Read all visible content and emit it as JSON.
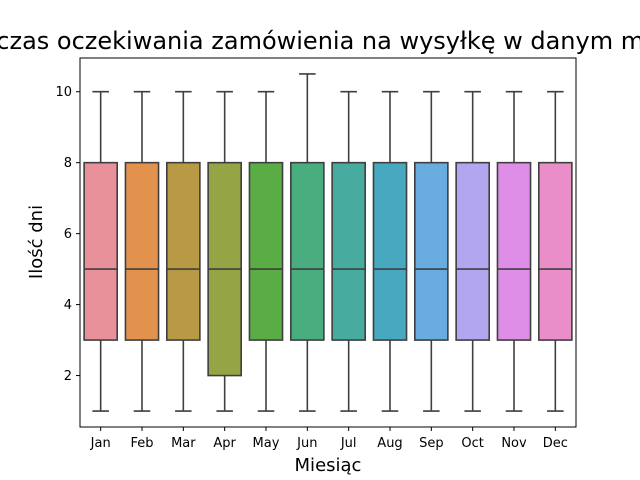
{
  "chart_data": {
    "type": "box",
    "title": "Średni czas oczekiwania zamówienia na wysyłkę w danym miesiącu",
    "xlabel": "Miesiąc",
    "ylabel": "Ilość dni",
    "ylim": [
      0.55,
      10.95
    ],
    "yticks": [
      2,
      4,
      6,
      8,
      10
    ],
    "grid": false,
    "categories": [
      "Jan",
      "Feb",
      "Mar",
      "Apr",
      "May",
      "Jun",
      "Jul",
      "Aug",
      "Sep",
      "Oct",
      "Nov",
      "Dec"
    ],
    "boxes": [
      {
        "min": 1,
        "q1": 3,
        "median": 5,
        "q3": 8,
        "max": 10,
        "color": "#e8919b"
      },
      {
        "min": 1,
        "q1": 3,
        "median": 5,
        "q3": 8,
        "max": 10,
        "color": "#e3924d"
      },
      {
        "min": 1,
        "q1": 3,
        "median": 5,
        "q3": 8,
        "max": 10,
        "color": "#b89a45"
      },
      {
        "min": 1,
        "q1": 2,
        "median": 5,
        "q3": 8,
        "max": 10,
        "color": "#95a445"
      },
      {
        "min": 1,
        "q1": 3,
        "median": 5,
        "q3": 8,
        "max": 10,
        "color": "#5aad45"
      },
      {
        "min": 1,
        "q1": 3,
        "median": 5,
        "q3": 8,
        "max": 10.5,
        "color": "#4aad80"
      },
      {
        "min": 1,
        "q1": 3,
        "median": 5,
        "q3": 8,
        "max": 10,
        "color": "#47aba0"
      },
      {
        "min": 1,
        "q1": 3,
        "median": 5,
        "q3": 8,
        "max": 10,
        "color": "#47a8c0"
      },
      {
        "min": 1,
        "q1": 3,
        "median": 5,
        "q3": 8,
        "max": 10,
        "color": "#68ace0"
      },
      {
        "min": 1,
        "q1": 3,
        "median": 5,
        "q3": 8,
        "max": 10,
        "color": "#b2a6f0"
      },
      {
        "min": 1,
        "q1": 3,
        "median": 5,
        "q3": 8,
        "max": 10,
        "color": "#df8ee8"
      },
      {
        "min": 1,
        "q1": 3,
        "median": 5,
        "q3": 8,
        "max": 10,
        "color": "#e98ec8"
      }
    ],
    "line_color": "#3f3f3f"
  }
}
